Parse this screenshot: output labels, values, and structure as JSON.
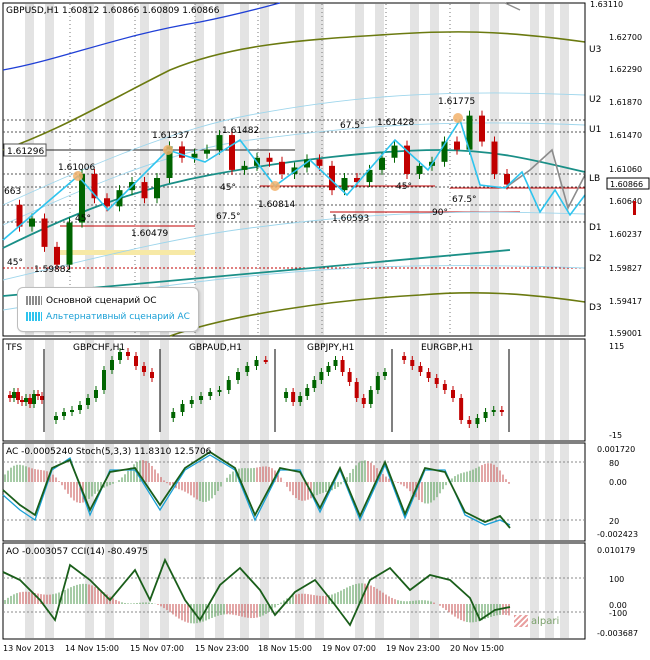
{
  "main_panel": {
    "title": "GBPUSD,H1  1.60812 1.60866 1.60809 1.60866",
    "price_box": "1.61296",
    "last_price": "1.60866",
    "left_price": "663",
    "level_labels": [
      "U3",
      "U2",
      "U1",
      "LB",
      "D1",
      "D2",
      "D3"
    ],
    "price_ticks": [
      "1.63110",
      "1.62700",
      "1.62290",
      "1.61870",
      "1.61470",
      "1.61060",
      "1.60640",
      "1.60237",
      "1.59827",
      "1.59417",
      "1.59001"
    ],
    "peak_labels": [
      "1.61006",
      "1.61337",
      "1.61482",
      "1.61428",
      "1.61775",
      "1.60479",
      "1.59882",
      "1.60814",
      "1.60593"
    ],
    "angle_labels": [
      "45°",
      "45°",
      "45°",
      "45°",
      "67.5°",
      "67.5°",
      "67.5°",
      "90°"
    ],
    "legend": {
      "main_scenario": "Основной сценарий ОС",
      "alt_scenario": "Альтернативный сценарий АС"
    }
  },
  "panel_tfs": {
    "label": "TFS",
    "pairs": [
      "GBPCHF,H1",
      "GBPAUD,H1",
      "GBPJPY,H1",
      "EURGBP,H1"
    ],
    "scale_top": "115",
    "scale_bottom": "-15"
  },
  "panel_ac": {
    "title": "AC -0.0005240  Stoch(5,3,3) 11.8310 12.5706",
    "ticks": [
      "0.001720",
      "80",
      "0.00",
      "20",
      "-0.002423"
    ]
  },
  "panel_ao": {
    "title": "AO -0.003057  CCI(14) -80.4975",
    "ticks": [
      "0.010179",
      "100",
      "0.00",
      "-100",
      "-0.003687"
    ]
  },
  "time_axis": [
    "13 Nov 2013",
    "14 Nov 15:00",
    "15 Nov 07:00",
    "15 Nov 23:00",
    "18 Nov 15:00",
    "19 Nov 07:00",
    "19 Nov 23:00",
    "20 Nov 15:00"
  ],
  "brand": "alpari",
  "colors": {
    "bull": "#006400",
    "bear": "#c00000",
    "trend_teal": "#1a8f87",
    "olive": "#6b7a10",
    "blue": "#1f3fd6",
    "scenario_main": "#8c8c8c",
    "scenario_alt": "#2ec4ee",
    "sessions": "#d9d9d9"
  },
  "chart_data": [
    {
      "type": "line",
      "name": "GBPUSD H1 price",
      "series": [
        {
          "values": [
            1.6062,
            1.6035,
            1.6045,
            1.601,
            1.5988,
            1.604,
            1.61,
            1.607,
            1.606,
            1.608,
            1.609,
            1.607,
            1.6095,
            1.6134,
            1.612,
            1.6125,
            1.613,
            1.6148,
            1.6105,
            1.611,
            1.612,
            1.6115,
            1.61,
            1.6108,
            1.6118,
            1.611,
            1.608,
            1.6095,
            1.609,
            1.6105,
            1.612,
            1.6135,
            1.61,
            1.611,
            1.6115,
            1.614,
            1.613,
            1.6172,
            1.614,
            1.61,
            1.6087
          ]
        }
      ],
      "peaks": [
        {
          "label": "1.61006",
          "value": 1.61006
        },
        {
          "label": "1.61337",
          "value": 1.61337
        },
        {
          "label": "1.61482",
          "value": 1.61482
        },
        {
          "label": "1.61428",
          "value": 1.61428
        },
        {
          "label": "1.61775",
          "value": 1.61775
        },
        {
          "label": "1.60479",
          "value": 1.60479
        },
        {
          "label": "1.59882",
          "value": 1.59882
        },
        {
          "label": "1.60814",
          "value": 1.60814
        },
        {
          "label": "1.60593",
          "value": 1.60593
        }
      ],
      "ylim": [
        1.59,
        1.6311
      ]
    },
    {
      "type": "line",
      "name": "AC / Stochastic",
      "ylim": [
        -0.002423,
        0.00172
      ]
    },
    {
      "type": "line",
      "name": "AO / CCI",
      "ylim": [
        -0.003687,
        0.010179
      ]
    }
  ]
}
